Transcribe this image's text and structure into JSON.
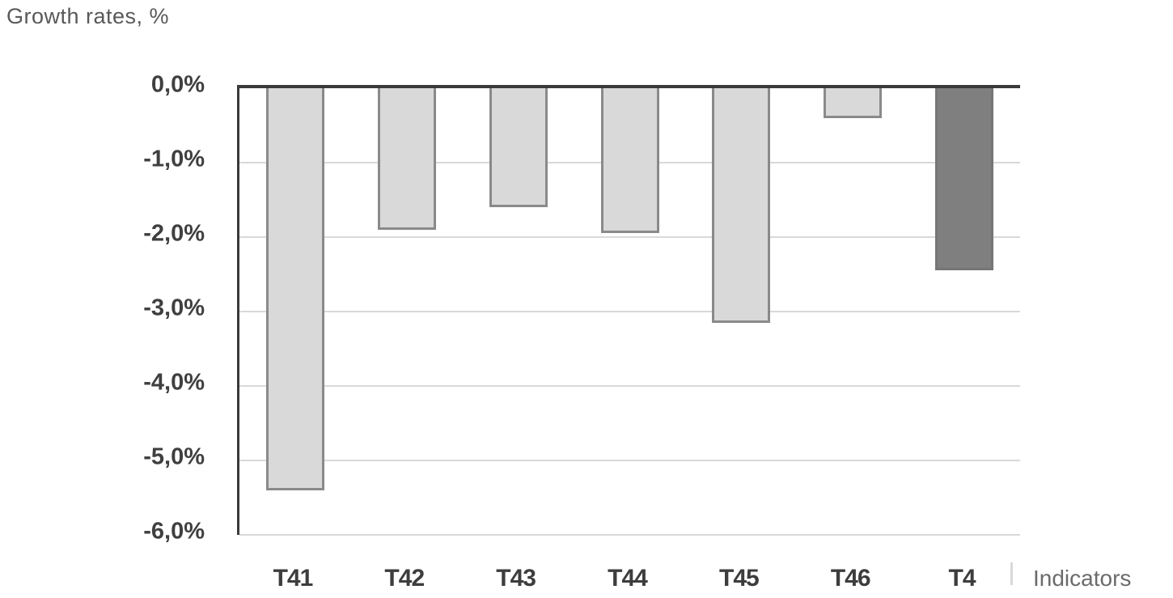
{
  "title": "Growth rates, %",
  "chart_data": {
    "type": "bar",
    "title": "Growth rates, %",
    "categories": [
      "T41",
      "T42",
      "T43",
      "T44",
      "T45",
      "T46",
      "T4"
    ],
    "values": [
      -5.4,
      -1.9,
      -1.6,
      -1.95,
      -3.15,
      -0.4,
      -2.45
    ],
    "highlight_index": 6,
    "xlabel": "Indicators",
    "ylabel": "",
    "ylim": [
      -6,
      0
    ],
    "y_tick_labels": [
      "0,0%",
      "-1,0%",
      "-2,0%",
      "-3,0%",
      "-4,0%",
      "-5,0%",
      "-6,0%"
    ],
    "grid": true,
    "legend": false,
    "colors": {
      "bar_fill": "#d9d9d9",
      "bar_border": "#8a8a8a",
      "highlight_fill": "#7f7f7f",
      "highlight_border": "#767676",
      "axis_line": "#3a3a3a",
      "gridline": "#d9d9d9",
      "title_text": "#595959",
      "tick_text": "#3f3f3f",
      "axis_title_text": "#6b6b6b"
    }
  }
}
